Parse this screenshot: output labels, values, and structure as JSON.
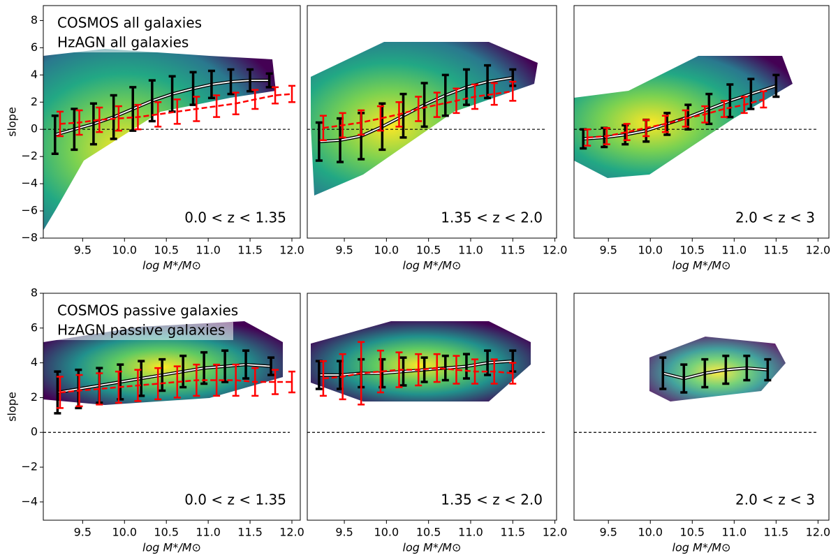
{
  "chart_data": [
    {
      "type": "errorbar_line",
      "annotation": "0.0 < z < 1.35",
      "xlabel": "log M*/M⊙",
      "ylabel": "slope",
      "legend": "upper left",
      "xlim": [
        9.03,
        12.1
      ],
      "ylim": [
        -8,
        9.1
      ],
      "reference_line": 0,
      "xticks": [
        9.5,
        {
          "value": 10,
          "label": "10.0"
        },
        10.5,
        {
          "value": 11,
          "label": "11.0"
        },
        11.5,
        {
          "value": 12,
          "label": "12.0"
        }
      ],
      "yticks": [
        {
          "value": -8,
          "label": "−8"
        },
        {
          "value": -6,
          "label": "−6"
        },
        {
          "value": -4,
          "label": "−4"
        },
        {
          "value": -2,
          "label": "−2"
        },
        0,
        2,
        4,
        6,
        8
      ],
      "series": [
        {
          "name": "COSMOS all galaxies",
          "color": "#000000",
          "linestyle": "solid",
          "x": [
            9.17,
            9.4,
            9.63,
            9.87,
            10.1,
            10.33,
            10.57,
            10.82,
            11.04,
            11.27,
            11.5,
            11.73
          ],
          "values": [
            -0.4,
            0.0,
            0.4,
            0.9,
            1.5,
            2.1,
            2.6,
            3.0,
            3.3,
            3.5,
            3.6,
            3.6
          ],
          "errors": [
            1.4,
            1.5,
            1.5,
            1.6,
            1.6,
            1.5,
            1.3,
            1.2,
            1.0,
            0.9,
            0.8,
            0.5
          ]
        },
        {
          "name": "HzAGN all galaxies",
          "color": "#ff0000",
          "linestyle": "dashed",
          "x": [
            9.23,
            9.46,
            9.7,
            9.93,
            10.16,
            10.4,
            10.63,
            10.86,
            11.1,
            11.33,
            11.56,
            11.8,
            12.0
          ],
          "values": [
            0.4,
            0.5,
            0.7,
            0.8,
            0.9,
            1.1,
            1.3,
            1.5,
            1.7,
            1.9,
            2.2,
            2.5,
            2.6
          ],
          "errors": [
            0.9,
            0.9,
            0.9,
            0.9,
            0.9,
            0.9,
            0.9,
            0.9,
            0.8,
            0.8,
            0.7,
            0.6,
            0.6
          ]
        }
      ]
    },
    {
      "type": "errorbar_line",
      "annotation": "1.35 < z < 2.0",
      "xlabel": "log M*/M⊙",
      "xlim": [
        9.06,
        12.02
      ],
      "ylim": [
        -8,
        9.1
      ],
      "reference_line": 0,
      "xticks": [
        9.5,
        {
          "value": 10,
          "label": "10.0"
        },
        10.5,
        {
          "value": 11,
          "label": "11.0"
        },
        11.5,
        {
          "value": 12,
          "label": "12.0"
        }
      ],
      "series": [
        {
          "color": "#000000",
          "linestyle": "solid",
          "x": [
            9.2,
            9.45,
            9.7,
            9.95,
            10.2,
            10.45,
            10.7,
            10.95,
            11.2,
            11.5
          ],
          "values": [
            -0.9,
            -0.8,
            -0.5,
            0.2,
            1.0,
            1.8,
            2.5,
            3.1,
            3.5,
            3.8
          ],
          "errors": [
            1.4,
            1.6,
            1.7,
            1.7,
            1.6,
            1.6,
            1.5,
            1.3,
            1.2,
            0.6
          ]
        },
        {
          "color": "#ff0000",
          "linestyle": "dashed",
          "x": [
            9.25,
            9.48,
            9.7,
            9.93,
            10.15,
            10.38,
            10.6,
            10.83,
            11.05,
            11.28,
            11.5
          ],
          "values": [
            0.1,
            0.3,
            0.5,
            0.8,
            1.1,
            1.5,
            1.8,
            2.1,
            2.4,
            2.6,
            2.8
          ],
          "errors": [
            0.9,
            0.9,
            0.9,
            0.9,
            0.9,
            0.9,
            0.9,
            0.9,
            0.9,
            0.8,
            0.7
          ]
        }
      ]
    },
    {
      "type": "errorbar_line",
      "annotation": "2.0 < z < 3",
      "xlabel": "log M*/M⊙",
      "xlim": [
        9.09,
        12.13
      ],
      "ylim": [
        -8,
        9.1
      ],
      "reference_line": 0,
      "xticks": [
        9.5,
        {
          "value": 10,
          "label": "10.0"
        },
        10.5,
        {
          "value": 11,
          "label": "11.0"
        },
        11.5,
        {
          "value": 12,
          "label": "12.0"
        }
      ],
      "series": [
        {
          "color": "#000000",
          "linestyle": "solid",
          "x": [
            9.2,
            9.45,
            9.7,
            9.95,
            10.2,
            10.45,
            10.7,
            10.95,
            11.2,
            11.5
          ],
          "values": [
            -0.7,
            -0.6,
            -0.4,
            -0.1,
            0.4,
            0.9,
            1.5,
            2.1,
            2.6,
            3.2
          ],
          "errors": [
            0.7,
            0.7,
            0.7,
            0.8,
            0.8,
            0.9,
            1.1,
            1.2,
            1.1,
            0.8
          ]
        },
        {
          "color": "#ff0000",
          "linestyle": "dashed",
          "x": [
            9.25,
            9.48,
            9.72,
            9.95,
            10.18,
            10.42,
            10.65,
            10.88,
            11.12,
            11.35
          ],
          "values": [
            -0.6,
            -0.5,
            -0.2,
            0.1,
            0.4,
            0.8,
            1.1,
            1.5,
            1.8,
            2.2
          ],
          "errors": [
            0.6,
            0.6,
            0.6,
            0.6,
            0.6,
            0.6,
            0.6,
            0.6,
            0.6,
            0.6
          ]
        }
      ]
    },
    {
      "type": "errorbar_line",
      "annotation": "0.0 < z < 1.35",
      "xlabel": "log M*/M⊙",
      "ylabel": "slope",
      "legend": "upper left",
      "xlim": [
        9.03,
        12.1
      ],
      "ylim": [
        -5.05,
        8
      ],
      "reference_line": 0,
      "xticks": [
        9.5,
        {
          "value": 10,
          "label": "10.0"
        },
        10.5,
        {
          "value": 11,
          "label": "11.0"
        },
        11.5,
        {
          "value": 12,
          "label": "12.0"
        }
      ],
      "yticks": [
        {
          "value": -4,
          "label": "−4"
        },
        {
          "value": -2,
          "label": "−2"
        },
        0,
        2,
        4,
        6,
        8
      ],
      "series": [
        {
          "name": "COSMOS passive galaxies",
          "color": "#000000",
          "linestyle": "solid",
          "x": [
            9.2,
            9.45,
            9.7,
            9.95,
            10.2,
            10.45,
            10.7,
            10.95,
            11.2,
            11.45,
            11.75
          ],
          "values": [
            2.3,
            2.5,
            2.7,
            2.9,
            3.1,
            3.3,
            3.5,
            3.7,
            3.8,
            3.9,
            3.8
          ],
          "errors": [
            1.2,
            1.1,
            1.0,
            1.0,
            1.0,
            0.9,
            0.9,
            0.9,
            0.9,
            0.8,
            0.5
          ]
        },
        {
          "name": "HzAGN passive galaxies",
          "color": "#ff0000",
          "linestyle": "dashed",
          "x": [
            9.23,
            9.46,
            9.7,
            9.93,
            10.16,
            10.4,
            10.63,
            10.86,
            11.1,
            11.33,
            11.56,
            11.8,
            12.0
          ],
          "values": [
            2.3,
            2.4,
            2.5,
            2.6,
            2.7,
            2.8,
            2.9,
            3.0,
            3.0,
            3.0,
            2.9,
            2.9,
            2.9
          ],
          "errors": [
            0.9,
            0.9,
            0.9,
            0.9,
            0.9,
            0.9,
            0.9,
            0.9,
            0.9,
            0.9,
            0.8,
            0.7,
            0.6
          ]
        }
      ]
    },
    {
      "type": "errorbar_line",
      "annotation": "1.35 < z < 2.0",
      "xlabel": "log M*/M⊙",
      "xlim": [
        9.06,
        12.02
      ],
      "ylim": [
        -5.05,
        8
      ],
      "reference_line": 0,
      "xticks": [
        9.5,
        {
          "value": 10,
          "label": "10.0"
        },
        10.5,
        {
          "value": 11,
          "label": "11.0"
        },
        11.5,
        {
          "value": 12,
          "label": "12.0"
        }
      ],
      "series": [
        {
          "color": "#000000",
          "linestyle": "solid",
          "x": [
            9.2,
            9.45,
            9.7,
            9.95,
            10.2,
            10.45,
            10.7,
            10.95,
            11.2,
            11.5
          ],
          "values": [
            3.3,
            3.3,
            3.4,
            3.4,
            3.5,
            3.6,
            3.7,
            3.8,
            4.0,
            4.1
          ],
          "errors": [
            0.8,
            0.8,
            0.8,
            0.8,
            0.8,
            0.7,
            0.7,
            0.7,
            0.7,
            0.6
          ]
        },
        {
          "color": "#ff0000",
          "linestyle": "dashed",
          "x": [
            9.25,
            9.48,
            9.7,
            9.93,
            10.15,
            10.38,
            10.6,
            10.83,
            11.05,
            11.28,
            11.5
          ],
          "values": [
            3.1,
            3.2,
            3.4,
            3.5,
            3.6,
            3.6,
            3.7,
            3.6,
            3.5,
            3.5,
            3.4
          ],
          "errors": [
            1.0,
            1.3,
            1.8,
            1.2,
            1.0,
            0.9,
            0.8,
            0.8,
            0.7,
            0.7,
            0.6
          ]
        }
      ]
    },
    {
      "type": "errorbar_line",
      "annotation": "2.0 < z < 3",
      "xlabel": "log M*/M⊙",
      "xlim": [
        9.09,
        12.13
      ],
      "ylim": [
        -5.05,
        8
      ],
      "reference_line": 0,
      "xticks": [
        9.5,
        {
          "value": 10,
          "label": "10.0"
        },
        10.5,
        {
          "value": 11,
          "label": "11.0"
        },
        11.5,
        {
          "value": 12,
          "label": "12.0"
        }
      ],
      "series": [
        {
          "color": "#000000",
          "linestyle": "solid",
          "x": [
            10.15,
            10.4,
            10.65,
            10.9,
            11.15,
            11.4
          ],
          "values": [
            3.4,
            3.1,
            3.4,
            3.6,
            3.7,
            3.6
          ],
          "errors": [
            0.9,
            0.8,
            0.8,
            0.8,
            0.7,
            0.6
          ]
        }
      ]
    }
  ]
}
